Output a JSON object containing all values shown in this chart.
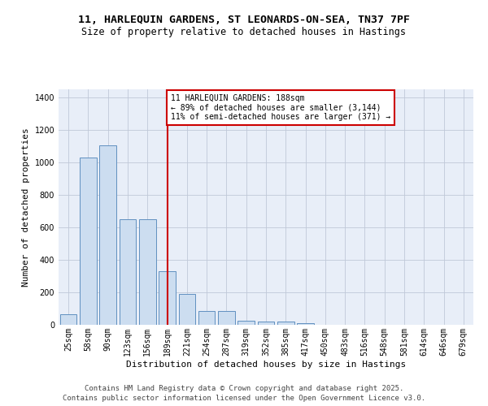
{
  "title_line1": "11, HARLEQUIN GARDENS, ST LEONARDS-ON-SEA, TN37 7PF",
  "title_line2": "Size of property relative to detached houses in Hastings",
  "xlabel": "Distribution of detached houses by size in Hastings",
  "ylabel": "Number of detached properties",
  "categories": [
    "25sqm",
    "58sqm",
    "90sqm",
    "123sqm",
    "156sqm",
    "189sqm",
    "221sqm",
    "254sqm",
    "287sqm",
    "319sqm",
    "352sqm",
    "385sqm",
    "417sqm",
    "450sqm",
    "483sqm",
    "516sqm",
    "548sqm",
    "581sqm",
    "614sqm",
    "646sqm",
    "679sqm"
  ],
  "values": [
    65,
    1030,
    1105,
    650,
    650,
    330,
    190,
    85,
    85,
    25,
    20,
    20,
    10,
    0,
    0,
    0,
    0,
    0,
    0,
    0,
    0
  ],
  "bar_color": "#ccddf0",
  "bar_edge_color": "#6090c0",
  "highlight_index": 5,
  "annotation_text": "11 HARLEQUIN GARDENS: 188sqm\n← 89% of detached houses are smaller (3,144)\n11% of semi-detached houses are larger (371) →",
  "annotation_box_color": "#ffffff",
  "annotation_box_edge": "#cc0000",
  "vline_color": "#cc0000",
  "ylim": [
    0,
    1450
  ],
  "yticks": [
    0,
    200,
    400,
    600,
    800,
    1000,
    1200,
    1400
  ],
  "grid_color": "#c0c8d8",
  "bg_color": "#e8eef8",
  "footer_line1": "Contains HM Land Registry data © Crown copyright and database right 2025.",
  "footer_line2": "Contains public sector information licensed under the Open Government Licence v3.0.",
  "title_fontsize": 9.5,
  "subtitle_fontsize": 8.5,
  "axis_label_fontsize": 8,
  "tick_fontsize": 7,
  "ann_fontsize": 7,
  "footer_fontsize": 6.5
}
